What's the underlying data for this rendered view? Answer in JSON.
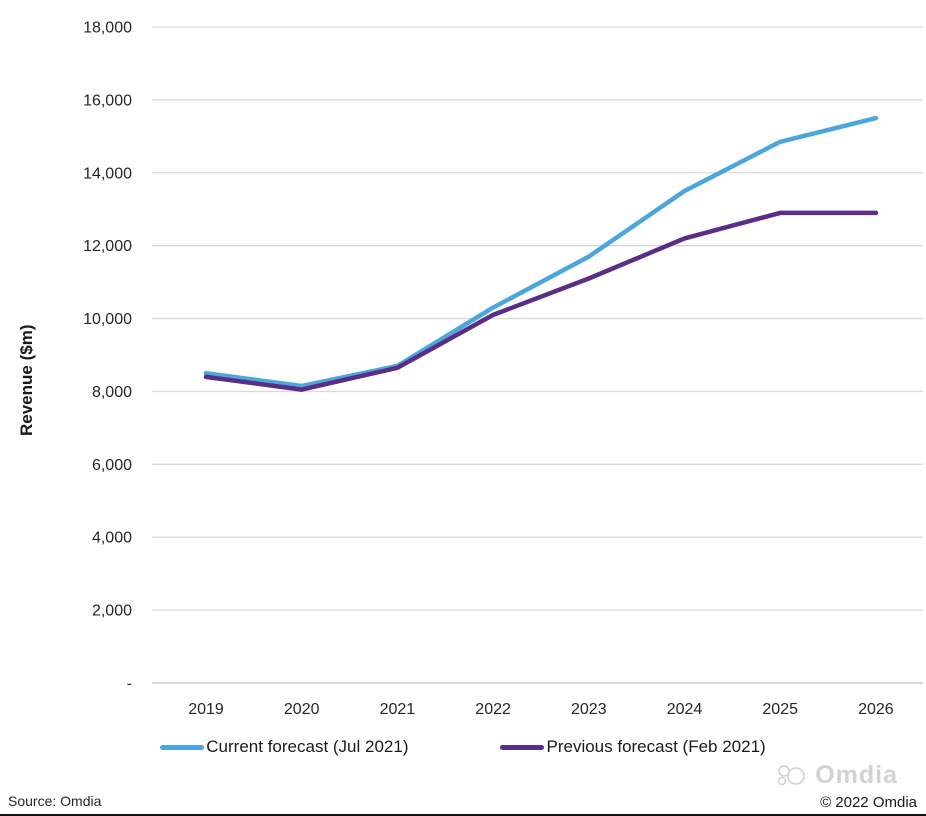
{
  "chart_data": {
    "type": "line",
    "title": "",
    "xlabel": "",
    "ylabel": "Revenue ($m)",
    "categories": [
      "2019",
      "2020",
      "2021",
      "2022",
      "2023",
      "2024",
      "2025",
      "2026"
    ],
    "series": [
      {
        "name": "Current forecast (Jul 2021)",
        "color": "#4BA6DD",
        "values": [
          8500,
          8150,
          8700,
          10300,
          11700,
          13500,
          14850,
          15500
        ]
      },
      {
        "name": "Previous forecast (Feb 2021)",
        "color": "#5A2D86",
        "values": [
          8400,
          8050,
          8650,
          10100,
          11100,
          12200,
          12900,
          12900
        ]
      }
    ],
    "ylim": [
      0,
      18000
    ],
    "ytick_step": 2000,
    "ytick_labels": [
      "-",
      "2,000",
      "4,000",
      "6,000",
      "8,000",
      "10,000",
      "12,000",
      "14,000",
      "16,000",
      "18,000"
    ],
    "grid": "horizontal",
    "legend_position": "bottom",
    "colors": {
      "gridline": "#d9d9d9",
      "zero_axis": "#c3c3c3",
      "tick_text": "#262626"
    }
  },
  "footer": {
    "source": "Source: Omdia",
    "copyright": "© 2022 Omdia",
    "logo_text": "Omdia",
    "logo_icon": "omdia-swirl-icon"
  }
}
